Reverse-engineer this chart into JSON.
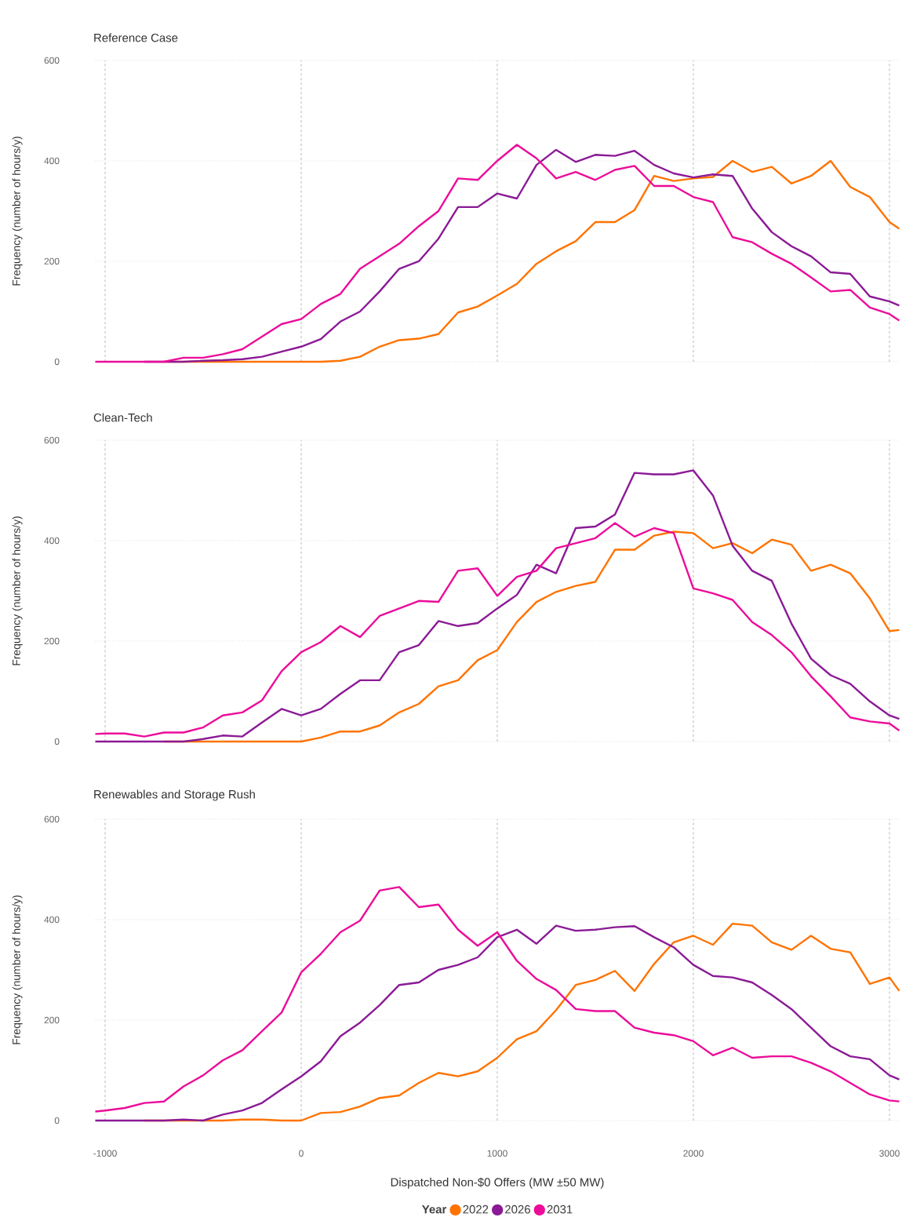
{
  "chart_data": [
    {
      "type": "line",
      "title": "Reference Case",
      "ylabel": "Frequency (number of hours/y)",
      "x": [
        -1050,
        -1000,
        -900,
        -800,
        -700,
        -600,
        -500,
        -400,
        -300,
        -200,
        -100,
        0,
        100,
        200,
        300,
        400,
        500,
        600,
        700,
        800,
        900,
        1000,
        1100,
        1200,
        1300,
        1400,
        1500,
        1600,
        1700,
        1800,
        1900,
        2000,
        2100,
        2200,
        2300,
        2400,
        2500,
        2600,
        2700,
        2800,
        2900,
        3000,
        3050
      ],
      "series": [
        {
          "color": "#ff7300",
          "values": [
            null,
            null,
            null,
            null,
            0,
            0,
            0,
            0,
            0,
            0,
            0,
            0,
            0,
            2,
            10,
            30,
            43,
            46,
            55,
            98,
            110,
            132,
            155,
            195,
            220,
            240,
            278,
            278,
            302,
            370,
            360,
            365,
            368,
            400,
            378,
            388,
            355,
            370,
            400,
            348,
            328,
            278,
            265
          ]
        },
        {
          "color": "#8b1a96",
          "values": [
            null,
            null,
            null,
            0,
            0,
            0,
            2,
            3,
            5,
            10,
            20,
            30,
            45,
            80,
            100,
            140,
            185,
            200,
            245,
            308,
            308,
            335,
            325,
            392,
            422,
            398,
            412,
            410,
            420,
            392,
            375,
            367,
            373,
            370,
            305,
            258,
            230,
            210,
            178,
            175,
            130,
            120,
            112
          ]
        },
        {
          "color": "#ec0c9a",
          "values": [
            0,
            0,
            0,
            0,
            0,
            8,
            8,
            15,
            25,
            50,
            75,
            85,
            115,
            135,
            185,
            210,
            235,
            270,
            300,
            365,
            362,
            400,
            432,
            405,
            365,
            378,
            362,
            382,
            390,
            350,
            350,
            328,
            318,
            248,
            238,
            215,
            195,
            168,
            140,
            143,
            108,
            95,
            82
          ]
        }
      ],
      "xlim": [
        -1050,
        3050
      ],
      "xticks": [
        -1000,
        0,
        1000,
        2000,
        3000
      ],
      "ylim": [
        0,
        600
      ],
      "yticks": [
        0,
        200,
        400,
        600
      ],
      "grid": true,
      "tick_labels": "y"
    },
    {
      "type": "line",
      "title": "Clean-Tech",
      "ylabel": "Frequency (number of hours/y)",
      "x": [
        -1050,
        -1000,
        -900,
        -800,
        -700,
        -600,
        -500,
        -400,
        -300,
        -200,
        -100,
        0,
        100,
        200,
        300,
        400,
        500,
        600,
        700,
        800,
        900,
        1000,
        1100,
        1200,
        1300,
        1400,
        1500,
        1600,
        1700,
        1800,
        1900,
        2000,
        2100,
        2200,
        2300,
        2400,
        2500,
        2600,
        2700,
        2800,
        2900,
        3000,
        3050
      ],
      "series": [
        {
          "color": "#ff7300",
          "values": [
            null,
            null,
            null,
            null,
            0,
            0,
            0,
            0,
            0,
            0,
            0,
            0,
            8,
            20,
            20,
            32,
            58,
            75,
            110,
            122,
            162,
            182,
            238,
            278,
            298,
            310,
            318,
            382,
            382,
            410,
            418,
            415,
            385,
            395,
            375,
            402,
            392,
            340,
            352,
            335,
            285,
            220,
            222
          ]
        },
        {
          "color": "#8b1a96",
          "values": [
            0,
            0,
            0,
            0,
            0,
            0,
            5,
            12,
            10,
            38,
            65,
            52,
            65,
            95,
            122,
            122,
            178,
            192,
            240,
            230,
            236,
            265,
            292,
            352,
            335,
            425,
            428,
            452,
            535,
            532,
            532,
            540,
            490,
            390,
            340,
            320,
            235,
            165,
            132,
            115,
            80,
            52,
            45
          ]
        },
        {
          "color": "#ec0c9a",
          "values": [
            15,
            16,
            16,
            10,
            18,
            18,
            28,
            52,
            58,
            82,
            140,
            178,
            198,
            230,
            208,
            250,
            265,
            280,
            278,
            340,
            345,
            290,
            328,
            340,
            385,
            395,
            405,
            435,
            408,
            425,
            415,
            305,
            295,
            282,
            238,
            212,
            178,
            130,
            90,
            48,
            40,
            36,
            22
          ]
        }
      ],
      "xlim": [
        -1050,
        3050
      ],
      "xticks": [
        -1000,
        0,
        1000,
        2000,
        3000
      ],
      "ylim": [
        0,
        600
      ],
      "yticks": [
        0,
        200,
        400,
        600
      ],
      "grid": true,
      "tick_labels": "y"
    },
    {
      "type": "line",
      "title": "Renewables and Storage Rush",
      "ylabel": "Frequency (number of hours/y)",
      "xlabel": "Dispatched Non-$0 Offers (MW ±50 MW)",
      "legend_title": "Year",
      "legend": "bottom",
      "x": [
        -1050,
        -1000,
        -900,
        -800,
        -700,
        -600,
        -500,
        -400,
        -300,
        -200,
        -100,
        0,
        100,
        200,
        300,
        400,
        500,
        600,
        700,
        800,
        900,
        1000,
        1100,
        1200,
        1300,
        1400,
        1500,
        1600,
        1700,
        1800,
        1900,
        2000,
        2100,
        2200,
        2300,
        2400,
        2500,
        2600,
        2700,
        2800,
        2900,
        3000,
        3050
      ],
      "series": [
        {
          "name": "2022",
          "color": "#ff7300",
          "values": [
            null,
            null,
            null,
            0,
            0,
            0,
            0,
            0,
            2,
            2,
            0,
            0,
            15,
            17,
            28,
            45,
            50,
            75,
            95,
            88,
            98,
            125,
            162,
            178,
            220,
            270,
            280,
            298,
            258,
            312,
            355,
            368,
            350,
            392,
            388,
            355,
            340,
            368,
            342,
            335,
            272,
            285,
            258
          ]
        },
        {
          "name": "2026",
          "color": "#8b1a96",
          "values": [
            0,
            0,
            0,
            0,
            0,
            2,
            0,
            12,
            20,
            35,
            62,
            88,
            118,
            168,
            195,
            230,
            270,
            275,
            300,
            310,
            325,
            365,
            380,
            352,
            388,
            378,
            380,
            385,
            387,
            365,
            345,
            310,
            288,
            285,
            275,
            250,
            222,
            185,
            148,
            128,
            122,
            90,
            82
          ]
        },
        {
          "name": "2031",
          "color": "#ec0c9a",
          "values": [
            18,
            20,
            25,
            35,
            38,
            68,
            90,
            120,
            140,
            178,
            215,
            295,
            332,
            375,
            398,
            458,
            465,
            425,
            430,
            380,
            348,
            375,
            318,
            282,
            260,
            222,
            218,
            218,
            185,
            175,
            170,
            158,
            130,
            145,
            125,
            128,
            128,
            115,
            98,
            75,
            52,
            40,
            38
          ]
        }
      ],
      "xlim": [
        -1050,
        3050
      ],
      "xticks": [
        -1000,
        0,
        1000,
        2000,
        3000
      ],
      "ylim": [
        0,
        600
      ],
      "yticks": [
        0,
        200,
        400,
        600
      ],
      "grid": true
    }
  ]
}
